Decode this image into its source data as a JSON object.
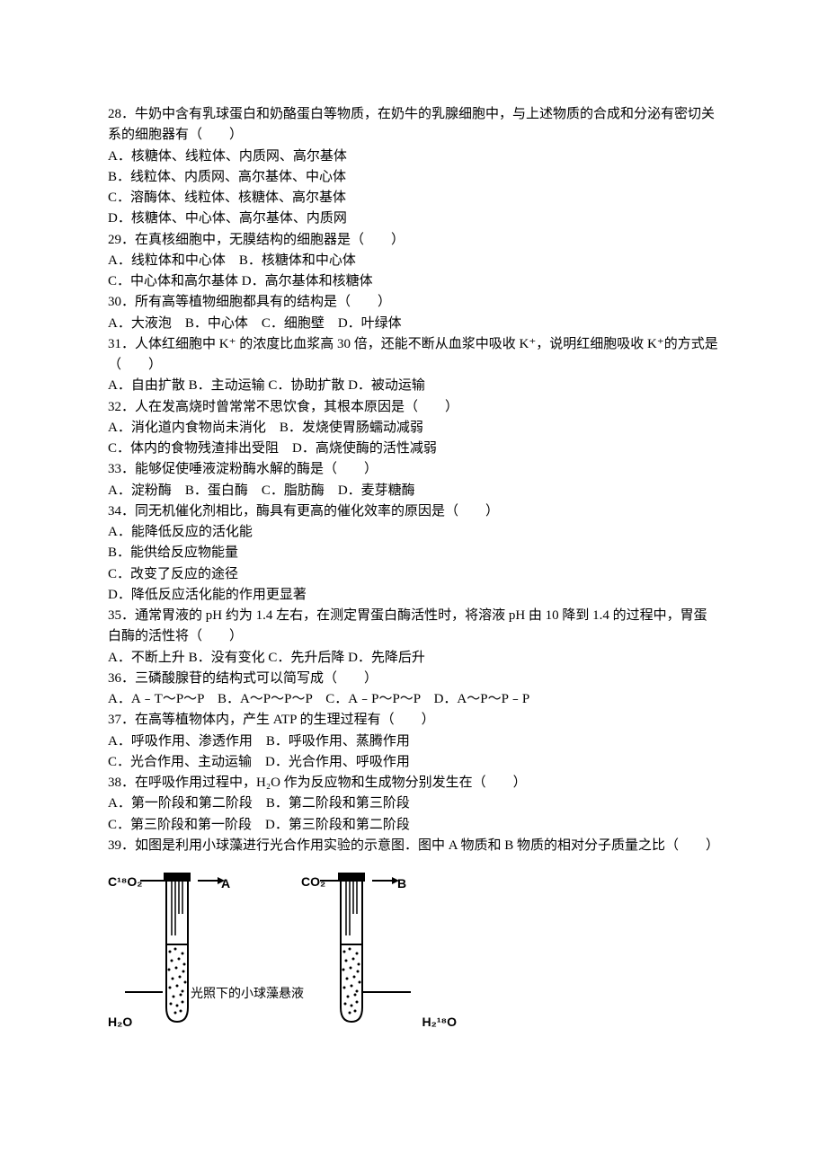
{
  "questions": [
    {
      "num": "28",
      "stem": "．牛奶中含有乳球蛋白和奶酪蛋白等物质，在奶牛的乳腺细胞中，与上述物质的合成和分泌有密切关系的细胞器有（　　）",
      "opts": [
        "A．核糖体、线粒体、内质网、高尔基体",
        "B．线粒体、内质网、高尔基体、中心体",
        "C．溶酶体、线粒体、核糖体、高尔基体",
        "D．核糖体、中心体、高尔基体、内质网"
      ]
    },
    {
      "num": "29",
      "stem": "．在真核细胞中，无膜结构的细胞器是（　　）",
      "opts": [
        "A．线粒体和中心体　B．核糖体和中心体",
        "C．中心体和高尔基体 D．高尔基体和核糖体"
      ]
    },
    {
      "num": "30",
      "stem": "．所有高等植物细胞都具有的结构是（　　）",
      "opts": [
        "A．大液泡　B．中心体　C．细胞壁　D．叶绿体"
      ]
    },
    {
      "num": "31",
      "stem": "．人体红细胞中 K⁺ 的浓度比血浆高 30 倍，还能不断从血浆中吸收 K⁺，说明红细胞吸收 K⁺的方式是（　　）",
      "opts": [
        "A．自由扩散 B．主动运输 C．协助扩散 D．被动运输"
      ]
    },
    {
      "num": "32",
      "stem": "．人在发高烧时曾常常不思饮食，其根本原因是（　　）",
      "opts": [
        "A．消化道内食物尚未消化　B．发烧使胃肠蠕动减弱",
        "C．体内的食物残渣排出受阻　D．高烧使酶的活性减弱"
      ]
    },
    {
      "num": "33",
      "stem": "．能够促使唾液淀粉酶水解的酶是（　　）",
      "opts": [
        "A．淀粉酶　B．蛋白酶　C．脂肪酶　D．麦芽糖酶"
      ]
    },
    {
      "num": "34",
      "stem": "．同无机催化剂相比，酶具有更高的催化效率的原因是（　　）",
      "opts": [
        "A．能降低反应的活化能",
        "B．能供给反应物能量",
        "C．改变了反应的途径",
        "D．降低反应活化能的作用更显著"
      ]
    },
    {
      "num": "35",
      "stem": "．通常胃液的 pH 约为 1.4 左右，在测定胃蛋白酶活性时，将溶液 pH 由 10 降到 1.4 的过程中，胃蛋白酶的活性将（　　）",
      "opts": [
        "A．不断上升 B．没有变化 C．先升后降 D．先降后升"
      ]
    },
    {
      "num": "36",
      "stem": "．三磷酸腺苷的结构式可以简写成（　　）",
      "opts": [
        "A．A﹣T～P～P　B．A～P～P～P　C．A﹣P～P～P　D．A～P～P﹣P"
      ]
    },
    {
      "num": "37",
      "stem": "．在高等植物体内，产生 ATP 的生理过程有（　　）",
      "opts": [
        "A．呼吸作用、渗透作用　B．呼吸作用、蒸腾作用",
        "C．光合作用、主动运输　D．光合作用、呼吸作用"
      ]
    },
    {
      "num": "38",
      "stem": "．在呼吸作用过程中，H₂O 作为反应物和生成物分别发生在（　　）",
      "opts": [
        "A．第一阶段和第二阶段　B．第二阶段和第三阶段",
        "C．第三阶段和第一阶段　D．第三阶段和第二阶段"
      ]
    },
    {
      "num": "39",
      "stem": "．如图是利用小球藻进行光合作用实验的示意图．图中 A 物质和 B 物质的相对分子质量之比（　　）",
      "opts": []
    }
  ],
  "figure": {
    "left_top": "C¹⁸O₂",
    "arrow_a": "A",
    "right_top": "CO₂",
    "arrow_b": "B",
    "left_bottom": "H₂O",
    "right_bottom": "H₂¹⁸O",
    "caption": "光照下的小球藻悬液",
    "tube_stroke": "#000000",
    "tube_fill": "#ffffff",
    "background": "#ffffff",
    "font_label": "Arial",
    "font_label_size": 14,
    "font_caption_size": 14
  }
}
